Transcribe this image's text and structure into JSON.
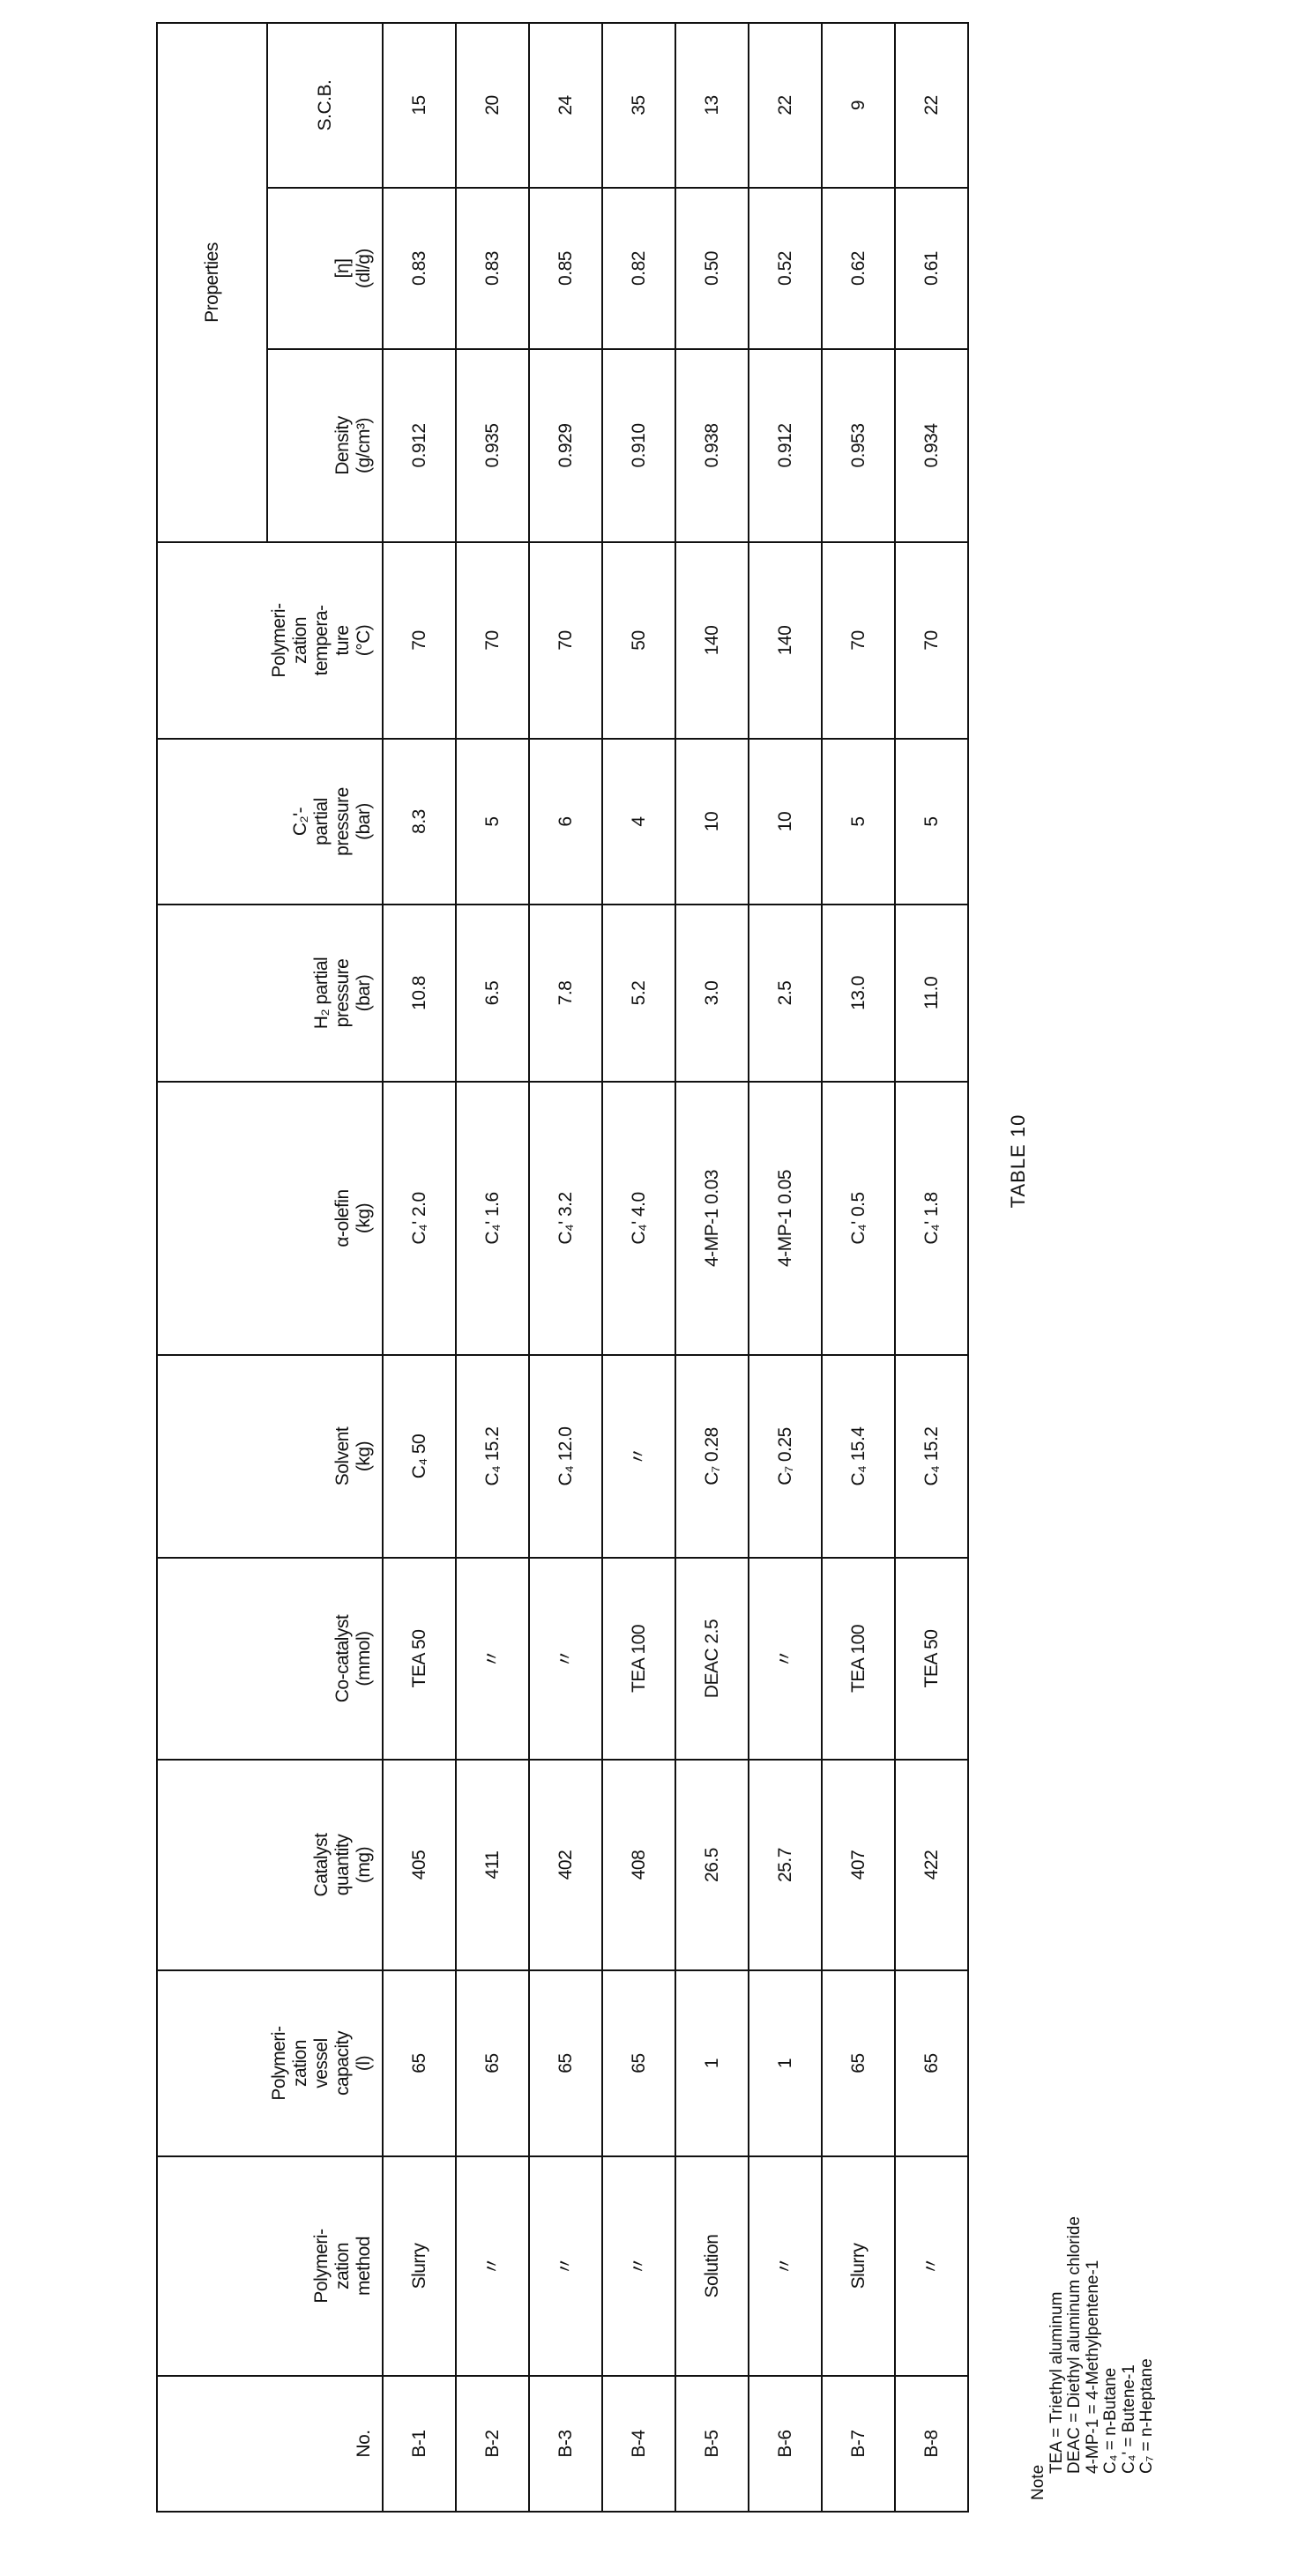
{
  "title": "TABLE 10",
  "table": {
    "headers": {
      "no": "No.",
      "method": "Polymeri-\nzation\nmethod",
      "vessel": "Polymeri-\nzation\nvessel\ncapacity\n(l)",
      "catalyst": "Catalyst\nquantity\n(mg)",
      "cocatalyst": "Co-catalyst\n(mmol)",
      "solvent": "Solvent\n(kg)",
      "olefin": "α-olefin\n(kg)",
      "h2": "H₂ partial\npressure\n(bar)",
      "c2": "C₂'-\npartial\npressure\n(bar)",
      "temp": "Polymeri-\nzation\ntempera-\nture\n(°C)",
      "properties": "Properties",
      "density": "Density\n(g/cm³)",
      "eta": "[η]\n(dl/g)",
      "scb": "S.C.B."
    },
    "rows": [
      [
        "B-1",
        "Slurry",
        "65",
        "405",
        "TEA 50",
        "C₄ 50",
        "C₄' 2.0",
        "10.8",
        "8.3",
        "70",
        "0.912",
        "0.83",
        "15"
      ],
      [
        "B-2",
        "〃",
        "65",
        "411",
        "〃",
        "C₄ 15.2",
        "C₄' 1.6",
        "6.5",
        "5",
        "70",
        "0.935",
        "0.83",
        "20"
      ],
      [
        "B-3",
        "〃",
        "65",
        "402",
        "〃",
        "C₄ 12.0",
        "C₄' 3.2",
        "7.8",
        "6",
        "70",
        "0.929",
        "0.85",
        "24"
      ],
      [
        "B-4",
        "〃",
        "65",
        "408",
        "TEA 100",
        "〃",
        "C₄' 4.0",
        "5.2",
        "4",
        "50",
        "0.910",
        "0.82",
        "35"
      ],
      [
        "B-5",
        "Solution",
        "1",
        "26.5",
        "DEAC 2.5",
        "C₇ 0.28",
        "4-MP-1 0.03",
        "3.0",
        "10",
        "140",
        "0.938",
        "0.50",
        "13"
      ],
      [
        "B-6",
        "〃",
        "1",
        "25.7",
        "〃",
        "C₇ 0.25",
        "4-MP-1 0.05",
        "2.5",
        "10",
        "140",
        "0.912",
        "0.52",
        "22"
      ],
      [
        "B-7",
        "Slurry",
        "65",
        "407",
        "TEA 100",
        "C₄ 15.4",
        "C₄' 0.5",
        "13.0",
        "5",
        "70",
        "0.953",
        "0.62",
        "9"
      ],
      [
        "B-8",
        "〃",
        "65",
        "422",
        "TEA 50",
        "C₄ 15.2",
        "C₄' 1.8",
        "11.0",
        "5",
        "70",
        "0.934",
        "0.61",
        "22"
      ]
    ]
  },
  "note": {
    "heading": "Note",
    "lines": [
      "TEA = Triethyl aluminum",
      "DEAC = Diethyl aluminum chloride",
      "4-MP-1 = 4-Methylpentene-1",
      "C₄ = n-Butane",
      "C₄' = Butene-1",
      "C₇ = n-Heptane"
    ]
  }
}
